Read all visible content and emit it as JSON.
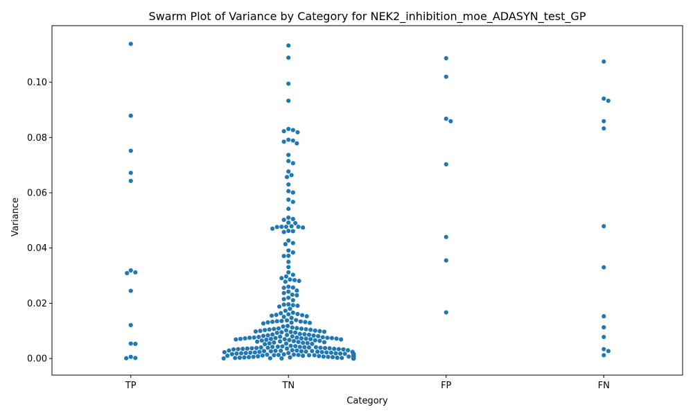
{
  "chart_data": {
    "type": "scatter",
    "subtype": "swarm",
    "title": "Swarm Plot of Variance by Category for NEK2_inhibition_moe_ADASYN_test_GP",
    "xlabel": "Category",
    "ylabel": "Variance",
    "categories": [
      "TP",
      "TN",
      "FP",
      "FN"
    ],
    "ylim": [
      -0.006,
      0.1205
    ],
    "yticks": [
      0.0,
      0.02,
      0.04,
      0.06,
      0.08,
      0.1
    ],
    "ytick_labels": [
      "0.00",
      "0.02",
      "0.04",
      "0.06",
      "0.08",
      "0.10"
    ],
    "grid": false,
    "marker_color": "#1f77b4",
    "series": [
      {
        "category": "TP",
        "values": [
          0.1139,
          0.0879,
          0.0752,
          0.0672,
          0.0643,
          0.0319,
          0.0312,
          0.0309,
          0.0245,
          0.0121,
          0.0054,
          0.0053,
          0.0006,
          0.0002,
          0.0001
        ]
      },
      {
        "category": "TN",
        "values": [
          0.1133,
          0.1089,
          0.0995,
          0.0933,
          0.0831,
          0.0827,
          0.0823,
          0.0819,
          0.0792,
          0.0789,
          0.0785,
          0.0779,
          0.0737,
          0.0715,
          0.0707,
          0.0677,
          0.0664,
          0.0657,
          0.063,
          0.0606,
          0.0601,
          0.0575,
          0.0567,
          0.0542,
          0.051,
          0.0505,
          0.0502,
          0.0492,
          0.049,
          0.0479,
          0.0477,
          0.0477,
          0.0477,
          0.0476,
          0.0474,
          0.047,
          0.0462,
          0.0461,
          0.0458,
          0.0427,
          0.0418,
          0.0414,
          0.0391,
          0.0384,
          0.0372,
          0.0371,
          0.035,
          0.0331,
          0.0312,
          0.0303,
          0.0297,
          0.0291,
          0.0286,
          0.0284,
          0.0281,
          0.0278,
          0.026,
          0.0257,
          0.0256,
          0.0246,
          0.0242,
          0.0237,
          0.0231,
          0.0229,
          0.022,
          0.0215,
          0.0211,
          0.0196,
          0.0195,
          0.0193,
          0.0191,
          0.0188,
          0.018,
          0.0173,
          0.0166,
          0.0164,
          0.0161,
          0.016,
          0.0158,
          0.0157,
          0.0155,
          0.0153,
          0.0151,
          0.0147,
          0.0139,
          0.0138,
          0.0136,
          0.0135,
          0.0134,
          0.0133,
          0.0132,
          0.0131,
          0.013,
          0.0129,
          0.0127,
          0.0118,
          0.0116,
          0.0112,
          0.011,
          0.0109,
          0.0108,
          0.0107,
          0.0106,
          0.0105,
          0.0104,
          0.0103,
          0.0102,
          0.0101,
          0.01,
          0.0099,
          0.0098,
          0.0097,
          0.0096,
          0.0095,
          0.0094,
          0.0093,
          0.0089,
          0.0088,
          0.0087,
          0.0086,
          0.0085,
          0.0084,
          0.0083,
          0.0082,
          0.0081,
          0.008,
          0.0079,
          0.0078,
          0.0077,
          0.0076,
          0.0076,
          0.0075,
          0.0075,
          0.0074,
          0.0074,
          0.0073,
          0.0073,
          0.0072,
          0.0072,
          0.0071,
          0.0071,
          0.007,
          0.007,
          0.0069,
          0.0069,
          0.0068,
          0.0067,
          0.0066,
          0.0065,
          0.0064,
          0.0063,
          0.0062,
          0.0061,
          0.006,
          0.0059,
          0.0058,
          0.0057,
          0.0056,
          0.0055,
          0.0054,
          0.0053,
          0.0052,
          0.0046,
          0.0045,
          0.0044,
          0.0043,
          0.0042,
          0.0042,
          0.0041,
          0.0041,
          0.004,
          0.004,
          0.0039,
          0.0039,
          0.0038,
          0.0038,
          0.0037,
          0.0037,
          0.0036,
          0.0036,
          0.0035,
          0.0035,
          0.0034,
          0.0034,
          0.0033,
          0.0033,
          0.003,
          0.003,
          0.0029,
          0.0029,
          0.0028,
          0.0028,
          0.0027,
          0.0027,
          0.0026,
          0.0026,
          0.0025,
          0.0025,
          0.0024,
          0.0024,
          0.0023,
          0.0023,
          0.0022,
          0.0022,
          0.0021,
          0.0021,
          0.002,
          0.002,
          0.0019,
          0.0019,
          0.0018,
          0.0018,
          0.0017,
          0.0017,
          0.0016,
          0.0016,
          0.0015,
          0.0015,
          0.0014,
          0.0014,
          0.0014,
          0.0013,
          0.0013,
          0.0013,
          0.0012,
          0.0012,
          0.0012,
          0.0011,
          0.0011,
          0.0011,
          0.001,
          0.001,
          0.001,
          0.0009,
          0.0009,
          0.0009,
          0.0008,
          0.0008,
          0.0008,
          0.0007,
          0.0007,
          0.0007,
          0.0006,
          0.0006,
          0.0006,
          0.0005,
          0.0005,
          0.0005,
          0.0004,
          0.0004,
          0.0004,
          0.0003,
          0.0003,
          0.0003,
          0.0002,
          0.0002,
          0.0002,
          0.0002,
          0.0001,
          0.0001,
          0.0001,
          0.0001,
          0.0001,
          0.0001,
          5e-05,
          5e-05,
          5e-05,
          5e-05,
          5e-05,
          5e-05,
          5e-05,
          5e-05,
          5e-05,
          5e-05,
          5e-05,
          5e-05,
          5e-05,
          5e-05,
          5e-05,
          5e-05,
          5e-05,
          5e-05,
          5e-05,
          5e-05,
          2e-05,
          2e-05,
          2e-05,
          2e-05,
          2e-05,
          2e-05,
          2e-05,
          2e-05,
          2e-05,
          2e-05,
          2e-05,
          2e-05,
          2e-05,
          2e-05,
          2e-05,
          2e-05,
          2e-05,
          2e-05,
          2e-05,
          2e-05
        ]
      },
      {
        "category": "FP",
        "values": [
          0.1087,
          0.102,
          0.0868,
          0.0859,
          0.0703,
          0.044,
          0.0355,
          0.0167
        ]
      },
      {
        "category": "FN",
        "values": [
          0.1075,
          0.0941,
          0.0933,
          0.0859,
          0.0833,
          0.0479,
          0.033,
          0.0153,
          0.0113,
          0.0078,
          0.0034,
          0.0027,
          0.0012
        ]
      }
    ]
  }
}
